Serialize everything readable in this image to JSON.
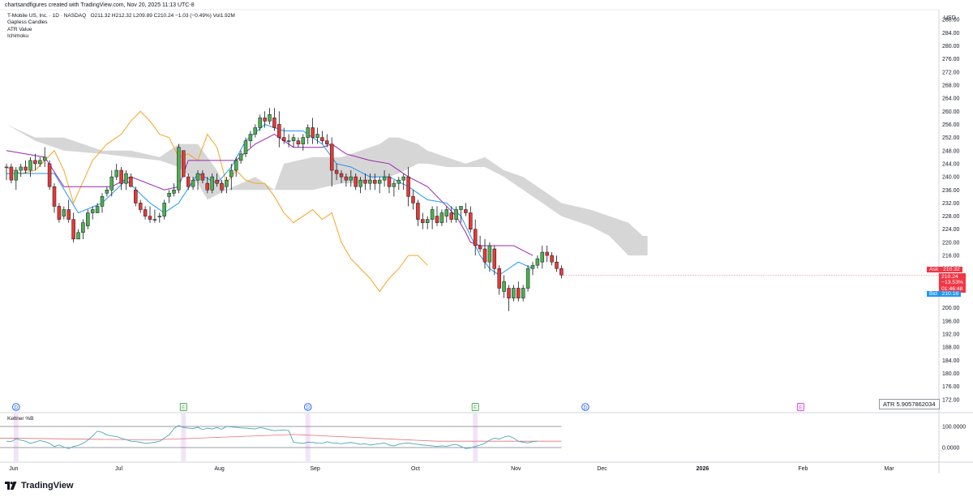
{
  "header": {
    "caption": "chartsandfigures created with TradingView.com, Nov 20, 2025 11:13 UTC-8",
    "symbol_line": "T-Mobile US, Inc. · 1D · NASDAQ",
    "ohlc": [
      {
        "k": "O",
        "v": "211.32"
      },
      {
        "k": "H",
        "v": "212.32"
      },
      {
        "k": "L",
        "v": "209.89"
      },
      {
        "k": "C",
        "v": "210.24"
      }
    ],
    "change": "−1.03 (−0.49%)",
    "vol_label": "Vol",
    "vol_value": "1.92M",
    "indicators": [
      "Gapless Candles",
      "ATR Value",
      "Ichimoku"
    ]
  },
  "footer": {
    "brand": "TradingView"
  },
  "atr": {
    "text": "ATR  5.9057862034"
  },
  "keltner": {
    "label": "Keltner %B"
  },
  "price_tags": {
    "ask_label": "Ask",
    "ask_value": "210.32",
    "last_value": "210.24",
    "last_pct": "−13.53%",
    "last_time": "01:46:48",
    "bid_label": "Bid",
    "bid_value": "210.16"
  },
  "colors": {
    "up": "#4caf50",
    "down": "#e53935",
    "wick": "#131722",
    "tenkan": "#2196f3",
    "kijun": "#9c27b0",
    "chikou": "#f5a623",
    "cloud": "#cfcfcf",
    "keltner_line": "#4aa8b5",
    "keltner_basis": "#e57373",
    "keltner_band": "#787b86",
    "event_shade": "#f1e4f7",
    "earnings": "#4caf50",
    "dividend": "#2962ff",
    "future_earnings": "#e040fb",
    "ask_bg": "#f23645",
    "bid_bg": "#2196f3"
  },
  "chart_data": {
    "type": "candlestick",
    "title": "T-Mobile US, Inc. · 1D · NASDAQ",
    "y_axis_unit": "USD",
    "ylim": [
      169,
      291
    ],
    "y_ticks": [
      288,
      284,
      280,
      276,
      272,
      268,
      264,
      260,
      256,
      252,
      248,
      244,
      240,
      236,
      232,
      228,
      224,
      220,
      216,
      212,
      208,
      204,
      200,
      196,
      192,
      188,
      184,
      180,
      176,
      172
    ],
    "x_ticks": [
      "Jun",
      "Jul",
      "Aug",
      "Sep",
      "Oct",
      "Nov",
      "Dec",
      "2026",
      "Feb",
      "Mar"
    ],
    "x_tick_index": [
      1.5,
      23.5,
      44.5,
      64.5,
      85.5,
      106.5,
      124.5,
      145.5,
      166.5,
      184.5
    ],
    "candles_ohlc": [
      [
        243,
        244,
        239,
        243
      ],
      [
        243,
        244,
        238,
        239
      ],
      [
        239,
        243,
        236,
        242
      ],
      [
        242,
        244,
        240,
        243
      ],
      [
        243,
        245,
        241,
        242
      ],
      [
        242,
        246,
        240,
        245
      ],
      [
        245,
        247,
        242,
        244
      ],
      [
        244,
        246,
        243,
        245
      ],
      [
        245,
        249,
        243,
        246
      ],
      [
        244,
        245,
        236,
        237
      ],
      [
        237,
        238,
        229,
        231
      ],
      [
        231,
        232,
        226,
        227
      ],
      [
        228,
        231,
        227,
        230
      ],
      [
        230,
        233,
        226,
        227
      ],
      [
        227,
        229,
        220,
        221
      ],
      [
        221,
        224,
        221,
        223
      ],
      [
        223,
        227,
        221,
        226
      ],
      [
        225,
        230,
        224,
        229
      ],
      [
        229,
        231,
        227,
        230
      ],
      [
        229,
        232,
        229,
        231
      ],
      [
        231,
        235,
        229,
        234
      ],
      [
        235,
        237,
        234,
        236
      ],
      [
        236,
        242,
        234,
        240
      ],
      [
        240,
        244,
        239,
        242
      ],
      [
        242,
        243,
        236,
        238
      ],
      [
        238,
        242,
        236,
        241
      ],
      [
        240,
        241,
        237,
        237
      ],
      [
        236,
        237,
        231,
        232
      ],
      [
        232,
        233,
        229,
        230
      ],
      [
        230,
        231,
        227,
        228
      ],
      [
        228,
        231,
        226,
        227
      ],
      [
        227,
        230,
        226,
        227
      ],
      [
        228,
        229,
        226,
        228
      ],
      [
        228,
        233,
        227,
        232
      ],
      [
        234,
        236,
        232,
        235
      ],
      [
        235,
        238,
        234,
        236
      ],
      [
        236,
        250,
        235,
        249
      ],
      [
        248,
        248,
        240,
        240
      ],
      [
        240,
        241,
        236,
        237
      ],
      [
        237,
        240,
        236,
        239
      ],
      [
        239,
        242,
        236,
        241
      ],
      [
        241,
        242,
        238,
        239
      ],
      [
        238,
        240,
        235,
        236
      ],
      [
        236,
        241,
        235,
        240
      ],
      [
        239,
        241,
        237,
        238
      ],
      [
        238,
        239,
        235,
        236
      ],
      [
        237,
        240,
        235,
        239
      ],
      [
        240,
        244,
        236,
        242
      ],
      [
        242,
        246,
        240,
        245
      ],
      [
        245,
        248,
        244,
        247
      ],
      [
        247,
        252,
        246,
        251
      ],
      [
        251,
        254,
        249,
        253
      ],
      [
        253,
        256,
        252,
        255
      ],
      [
        255,
        259,
        254,
        258
      ],
      [
        258,
        260,
        255,
        257
      ],
      [
        257,
        261,
        256,
        259
      ],
      [
        258,
        261,
        254,
        255
      ],
      [
        256,
        260,
        249,
        252
      ],
      [
        252,
        255,
        250,
        251
      ],
      [
        251,
        253,
        249,
        251
      ],
      [
        251,
        253,
        249,
        252
      ],
      [
        251,
        252,
        249,
        250
      ],
      [
        250,
        253,
        248,
        252
      ],
      [
        252,
        256,
        250,
        255
      ],
      [
        255,
        258,
        250,
        252
      ],
      [
        252,
        255,
        250,
        253
      ],
      [
        252,
        254,
        250,
        251
      ],
      [
        251,
        253,
        249,
        250
      ],
      [
        250,
        252,
        237,
        242
      ],
      [
        242,
        244,
        239,
        241
      ],
      [
        241,
        242,
        238,
        240
      ],
      [
        240,
        241,
        237,
        239
      ],
      [
        239,
        242,
        237,
        240
      ],
      [
        240,
        241,
        236,
        237
      ],
      [
        237,
        240,
        235,
        239
      ],
      [
        239,
        241,
        236,
        238
      ],
      [
        238,
        241,
        236,
        239
      ],
      [
        239,
        241,
        236,
        238
      ],
      [
        238,
        240,
        235,
        239
      ],
      [
        239,
        242,
        237,
        240
      ],
      [
        240,
        241,
        235,
        237
      ],
      [
        237,
        239,
        234,
        238
      ],
      [
        238,
        240,
        236,
        239
      ],
      [
        239,
        241,
        236,
        240
      ],
      [
        240,
        243,
        231,
        234
      ],
      [
        234,
        236,
        230,
        232
      ],
      [
        232,
        233,
        225,
        227
      ],
      [
        227,
        229,
        224,
        226
      ],
      [
        226,
        228,
        224,
        227
      ],
      [
        227,
        231,
        224,
        230
      ],
      [
        228,
        231,
        225,
        226
      ],
      [
        226,
        230,
        225,
        229
      ],
      [
        228,
        231,
        226,
        230
      ],
      [
        229,
        231,
        226,
        227
      ],
      [
        227,
        231,
        226,
        230
      ],
      [
        230,
        231,
        226,
        231
      ],
      [
        230,
        232,
        228,
        229
      ],
      [
        229,
        231,
        223,
        224
      ],
      [
        224,
        227,
        216,
        219
      ],
      [
        219,
        222,
        217,
        218
      ],
      [
        218,
        221,
        212,
        214
      ],
      [
        214,
        220,
        211,
        219
      ],
      [
        218,
        219,
        210,
        212
      ],
      [
        212,
        213,
        204,
        206
      ],
      [
        205,
        210,
        203,
        208
      ],
      [
        206,
        207,
        199,
        203
      ],
      [
        203,
        207,
        202,
        206
      ],
      [
        206,
        208,
        202,
        203
      ],
      [
        203,
        207,
        202,
        206
      ],
      [
        206,
        213,
        205,
        212
      ],
      [
        212,
        214,
        210,
        213
      ],
      [
        213,
        216,
        212,
        215
      ],
      [
        214,
        219,
        212,
        217
      ],
      [
        217,
        219,
        214,
        216
      ],
      [
        216,
        217,
        213,
        214
      ],
      [
        214,
        216,
        211,
        212
      ],
      [
        212,
        213,
        209,
        210
      ]
    ],
    "tenkan": [
      [
        0,
        241
      ],
      [
        10,
        241
      ],
      [
        15,
        229
      ],
      [
        20,
        232
      ],
      [
        25,
        239
      ],
      [
        30,
        232
      ],
      [
        33,
        229
      ],
      [
        36,
        232
      ],
      [
        40,
        241
      ],
      [
        44,
        238
      ],
      [
        47,
        243
      ],
      [
        50,
        251
      ],
      [
        54,
        256
      ],
      [
        58,
        254
      ],
      [
        62,
        254
      ],
      [
        66,
        250
      ],
      [
        69,
        244
      ],
      [
        72,
        243
      ],
      [
        76,
        240
      ],
      [
        80,
        240
      ],
      [
        84,
        237
      ],
      [
        88,
        233
      ],
      [
        92,
        232
      ],
      [
        95,
        228
      ],
      [
        97,
        222
      ],
      [
        99,
        216
      ],
      [
        101,
        212
      ],
      [
        103,
        210
      ],
      [
        105,
        212
      ],
      [
        107,
        214
      ],
      [
        110,
        212
      ]
    ],
    "kijun": [
      [
        0,
        248
      ],
      [
        8,
        246
      ],
      [
        12,
        237
      ],
      [
        22,
        237
      ],
      [
        26,
        240
      ],
      [
        33,
        236
      ],
      [
        36,
        237
      ],
      [
        38,
        245
      ],
      [
        48,
        245
      ],
      [
        52,
        250
      ],
      [
        56,
        253
      ],
      [
        60,
        249
      ],
      [
        66,
        249
      ],
      [
        68,
        250
      ],
      [
        71,
        247
      ],
      [
        76,
        245
      ],
      [
        80,
        244
      ],
      [
        84,
        240
      ],
      [
        88,
        237
      ],
      [
        92,
        231
      ],
      [
        94,
        228
      ],
      [
        96,
        223
      ],
      [
        97,
        220
      ],
      [
        99,
        219
      ],
      [
        106,
        219
      ],
      [
        110,
        216
      ]
    ],
    "chikou": [
      [
        0,
        243
      ],
      [
        3,
        241
      ],
      [
        6,
        242
      ],
      [
        10,
        248
      ],
      [
        12,
        242
      ],
      [
        14,
        232
      ],
      [
        18,
        245
      ],
      [
        21,
        250
      ],
      [
        24,
        253
      ],
      [
        26,
        257
      ],
      [
        28,
        260
      ],
      [
        30,
        257
      ],
      [
        32,
        253
      ],
      [
        34,
        252
      ],
      [
        36,
        246
      ],
      [
        38,
        247
      ],
      [
        40,
        245
      ],
      [
        42,
        253
      ],
      [
        44,
        249
      ],
      [
        46,
        238
      ],
      [
        48,
        242
      ],
      [
        50,
        239
      ],
      [
        52,
        238
      ],
      [
        54,
        238
      ],
      [
        56,
        234
      ],
      [
        58,
        229
      ],
      [
        60,
        226
      ],
      [
        62,
        228
      ],
      [
        64,
        230
      ],
      [
        66,
        227
      ],
      [
        68,
        229
      ],
      [
        70,
        220
      ],
      [
        72,
        215
      ],
      [
        74,
        212
      ],
      [
        76,
        209
      ],
      [
        78,
        205
      ],
      [
        80,
        209
      ],
      [
        82,
        212
      ],
      [
        84,
        216
      ],
      [
        86,
        216
      ],
      [
        88,
        213
      ]
    ],
    "cloud_upper": [
      [
        0,
        256
      ],
      [
        6,
        252
      ],
      [
        12,
        252
      ],
      [
        20,
        248
      ],
      [
        26,
        248
      ],
      [
        32,
        246
      ],
      [
        36,
        250
      ],
      [
        40,
        250
      ],
      [
        44,
        242
      ],
      [
        46,
        236
      ],
      [
        52,
        236
      ],
      [
        56,
        236
      ],
      [
        58,
        244
      ],
      [
        64,
        246
      ],
      [
        70,
        246
      ],
      [
        74,
        248
      ],
      [
        78,
        250
      ],
      [
        80,
        252
      ],
      [
        82,
        252
      ],
      [
        86,
        250
      ],
      [
        88,
        248
      ],
      [
        92,
        246
      ],
      [
        96,
        244
      ],
      [
        100,
        246
      ],
      [
        104,
        242
      ],
      [
        108,
        240
      ],
      [
        112,
        236
      ],
      [
        116,
        232
      ],
      [
        122,
        230
      ],
      [
        126,
        228
      ],
      [
        130,
        226
      ],
      [
        133,
        222
      ],
      [
        134,
        222
      ]
    ],
    "cloud_lower": [
      [
        0,
        256
      ],
      [
        6,
        251
      ],
      [
        12,
        248
      ],
      [
        20,
        247
      ],
      [
        26,
        246
      ],
      [
        32,
        245
      ],
      [
        36,
        243
      ],
      [
        40,
        238
      ],
      [
        42,
        233
      ],
      [
        46,
        236
      ],
      [
        52,
        240
      ],
      [
        56,
        236
      ],
      [
        58,
        236
      ],
      [
        64,
        236
      ],
      [
        70,
        238
      ],
      [
        74,
        238
      ],
      [
        78,
        240
      ],
      [
        80,
        240
      ],
      [
        82,
        241
      ],
      [
        86,
        244
      ],
      [
        88,
        244
      ],
      [
        92,
        243
      ],
      [
        96,
        243
      ],
      [
        100,
        243
      ],
      [
        104,
        240
      ],
      [
        108,
        236
      ],
      [
        112,
        232
      ],
      [
        116,
        228
      ],
      [
        122,
        225
      ],
      [
        126,
        222
      ],
      [
        130,
        216
      ],
      [
        133,
        216
      ],
      [
        134,
        216
      ]
    ],
    "keltner_pb": [
      0.3,
      0.28,
      0.42,
      0.35,
      0.3,
      0.2,
      0.26,
      0.33,
      0.28,
      0.2,
      0.05,
      0.12,
      0.02,
      -0.05,
      0.05,
      0.1,
      0.2,
      0.35,
      0.55,
      0.78,
      0.72,
      0.6,
      0.55,
      0.52,
      0.44,
      0.38,
      0.3,
      0.28,
      0.25,
      0.2,
      0.22,
      0.25,
      0.3,
      0.45,
      0.6,
      0.9,
      1.05,
      0.95,
      0.92,
      0.9,
      0.96,
      0.85,
      0.92,
      0.88,
      0.95,
      0.87,
      1.0,
      0.98,
      0.96,
      0.93,
      0.92,
      0.9,
      0.88,
      0.95,
      0.9,
      0.85,
      0.8,
      0.82,
      0.84,
      0.8,
      0.25,
      0.22,
      0.2,
      0.25,
      0.24,
      0.21,
      0.2,
      0.28,
      0.22,
      0.21,
      0.18,
      0.22,
      0.24,
      0.2,
      0.15,
      0.18,
      0.12,
      0.15,
      0.18,
      0.22,
      0.12,
      0.08,
      0.15,
      0.2,
      0.22,
      0.18,
      0.15,
      0.12,
      0.1,
      0.08,
      0.05,
      0.08,
      0.06,
      0.12,
      0.15,
      0.05,
      -0.05,
      -0.02,
      0.05,
      0.12,
      0.2,
      0.35,
      0.45,
      0.4,
      0.5,
      0.55,
      0.45,
      0.3,
      0.25,
      0.22,
      0.28,
      0.3
    ],
    "keltner_ticks": [
      "100.0000",
      "0.0000"
    ],
    "events": [
      {
        "type": "dividend",
        "label": "D",
        "index": 2
      },
      {
        "type": "earnings",
        "label": "E",
        "index": 37
      },
      {
        "type": "dividend",
        "label": "D",
        "index": 63
      },
      {
        "type": "earnings",
        "label": "E",
        "index": 98
      },
      {
        "type": "dividend",
        "label": "D",
        "index": 121
      },
      {
        "type": "earnings_future",
        "label": "E",
        "index": 166
      }
    ],
    "legend": [
      "Gapless Candles",
      "ATR Value",
      "Ichimoku",
      "Keltner %B"
    ]
  }
}
